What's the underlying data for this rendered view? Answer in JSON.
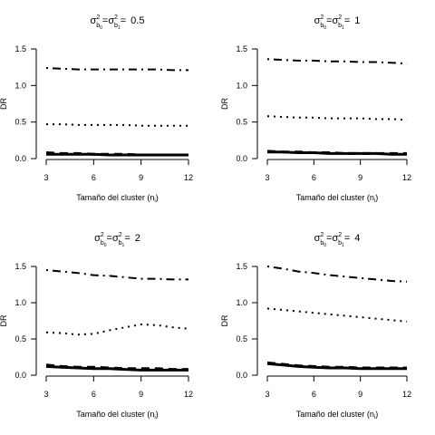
{
  "chart_data": [
    {
      "type": "line",
      "title": {
        "sigma": "σ",
        "sup": "2",
        "sub1": "b",
        "sub1sub": "0",
        "eq": "=",
        "sub2": "b",
        "sub2sub": "1",
        "value": "0.5"
      },
      "xlabel": "Tamaño del cluster (n",
      "xlabel_sub": "i",
      "xlabel_close": ")",
      "ylabel": "DR",
      "xlim": [
        3,
        12
      ],
      "ylim": [
        0,
        1.5
      ],
      "xticks": [
        "3",
        "6",
        "9",
        "12"
      ],
      "yticks": [
        "0.0",
        "0.5",
        "1.0",
        "1.5"
      ],
      "x": [
        3,
        4,
        5,
        6,
        7,
        8,
        9,
        10,
        11,
        12
      ],
      "series": [
        {
          "style": "dotdash",
          "values": [
            1.24,
            1.23,
            1.22,
            1.22,
            1.22,
            1.22,
            1.22,
            1.22,
            1.21,
            1.21
          ]
        },
        {
          "style": "dotted",
          "values": [
            0.47,
            0.47,
            0.46,
            0.46,
            0.46,
            0.46,
            0.45,
            0.45,
            0.45,
            0.45
          ]
        },
        {
          "style": "dashed",
          "values": [
            0.08,
            0.07,
            0.07,
            0.06,
            0.06,
            0.06,
            0.05,
            0.05,
            0.05,
            0.05
          ]
        },
        {
          "style": "solid",
          "values": [
            0.06,
            0.06,
            0.06,
            0.06,
            0.05,
            0.05,
            0.05,
            0.05,
            0.05,
            0.05
          ]
        }
      ]
    },
    {
      "type": "line",
      "title": {
        "sigma": "σ",
        "sup": "2",
        "sub1": "b",
        "sub1sub": "0",
        "eq": "=",
        "sub2": "b",
        "sub2sub": "1",
        "value": "1"
      },
      "xlabel": "Tamaño del cluster (n",
      "xlabel_sub": "i",
      "xlabel_close": ")",
      "ylabel": "DR",
      "xlim": [
        3,
        12
      ],
      "ylim": [
        0,
        1.5
      ],
      "xticks": [
        "3",
        "6",
        "9",
        "12"
      ],
      "yticks": [
        "0.0",
        "0.5",
        "1.0",
        "1.5"
      ],
      "x": [
        3,
        4,
        5,
        6,
        7,
        8,
        9,
        10,
        11,
        12
      ],
      "series": [
        {
          "style": "dotdash",
          "values": [
            1.36,
            1.35,
            1.34,
            1.34,
            1.33,
            1.33,
            1.32,
            1.32,
            1.31,
            1.3
          ]
        },
        {
          "style": "dotted",
          "values": [
            0.58,
            0.57,
            0.56,
            0.56,
            0.55,
            0.55,
            0.55,
            0.54,
            0.54,
            0.53
          ]
        },
        {
          "style": "dashed",
          "values": [
            0.1,
            0.09,
            0.09,
            0.08,
            0.08,
            0.07,
            0.07,
            0.07,
            0.07,
            0.07
          ]
        },
        {
          "style": "solid",
          "values": [
            0.09,
            0.09,
            0.08,
            0.08,
            0.07,
            0.07,
            0.07,
            0.07,
            0.06,
            0.06
          ]
        }
      ]
    },
    {
      "type": "line",
      "title": {
        "sigma": "σ",
        "sup": "2",
        "sub1": "b",
        "sub1sub": "0",
        "eq": "=",
        "sub2": "b",
        "sub2sub": "1",
        "value": "2"
      },
      "xlabel": "Tamaño del cluster (n",
      "xlabel_sub": "i",
      "xlabel_close": ")",
      "ylabel": "DR",
      "xlim": [
        3,
        12
      ],
      "ylim": [
        0,
        1.5
      ],
      "xticks": [
        "3",
        "6",
        "9",
        "12"
      ],
      "yticks": [
        "0.0",
        "0.5",
        "1.0",
        "1.5"
      ],
      "x": [
        3,
        4,
        5,
        6,
        7,
        8,
        9,
        10,
        11,
        12
      ],
      "series": [
        {
          "style": "dotdash",
          "values": [
            1.45,
            1.43,
            1.41,
            1.38,
            1.37,
            1.35,
            1.33,
            1.33,
            1.32,
            1.32
          ]
        },
        {
          "style": "dotted",
          "values": [
            0.59,
            0.58,
            0.56,
            0.57,
            0.62,
            0.66,
            0.7,
            0.69,
            0.66,
            0.64
          ]
        },
        {
          "style": "dashed",
          "values": [
            0.14,
            0.12,
            0.11,
            0.11,
            0.1,
            0.09,
            0.09,
            0.09,
            0.08,
            0.08
          ]
        },
        {
          "style": "solid",
          "values": [
            0.12,
            0.11,
            0.1,
            0.09,
            0.09,
            0.08,
            0.07,
            0.07,
            0.07,
            0.07
          ]
        }
      ]
    },
    {
      "type": "line",
      "title": {
        "sigma": "σ",
        "sup": "2",
        "sub1": "b",
        "sub1sub": "0",
        "eq": "=",
        "sub2": "b",
        "sub2sub": "1",
        "value": "4"
      },
      "xlabel": "Tamaño del cluster (n",
      "xlabel_sub": "i",
      "xlabel_close": ")",
      "ylabel": "DR",
      "xlim": [
        3,
        12
      ],
      "ylim": [
        0,
        1.5
      ],
      "xticks": [
        "3",
        "6",
        "9",
        "12"
      ],
      "yticks": [
        "0.0",
        "0.5",
        "1.0",
        "1.5"
      ],
      "x": [
        3,
        4,
        5,
        6,
        7,
        8,
        9,
        10,
        11,
        12
      ],
      "series": [
        {
          "style": "dotdash",
          "values": [
            1.5,
            1.47,
            1.43,
            1.41,
            1.38,
            1.36,
            1.34,
            1.32,
            1.3,
            1.29
          ]
        },
        {
          "style": "dotted",
          "values": [
            0.92,
            0.9,
            0.88,
            0.86,
            0.84,
            0.82,
            0.8,
            0.78,
            0.76,
            0.74
          ]
        },
        {
          "style": "dashed",
          "values": [
            0.17,
            0.15,
            0.13,
            0.12,
            0.11,
            0.11,
            0.1,
            0.1,
            0.1,
            0.1
          ]
        },
        {
          "style": "solid",
          "values": [
            0.16,
            0.14,
            0.12,
            0.11,
            0.1,
            0.1,
            0.09,
            0.09,
            0.09,
            0.09
          ]
        }
      ]
    }
  ]
}
